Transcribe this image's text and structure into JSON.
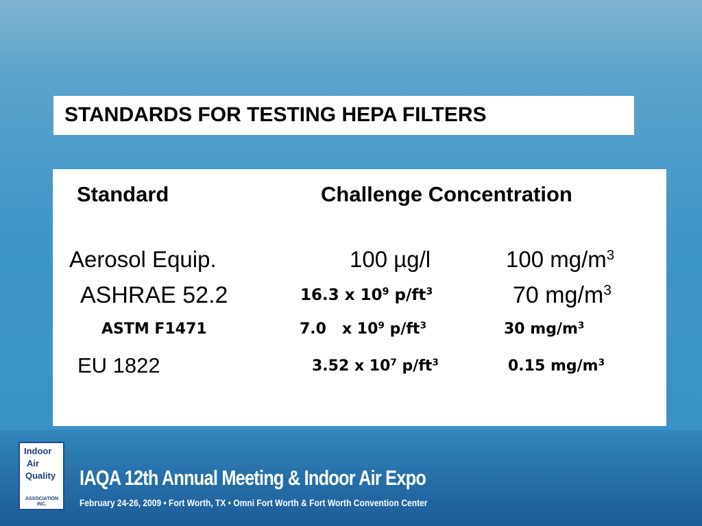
{
  "title": "STANDARDS FOR TESTING HEPA FILTERS",
  "table": {
    "header": [
      "Standard",
      "Challenge Concentration"
    ],
    "rows": [
      [
        [
          {
            "text": "Aerosol Equip."
          }
        ],
        [
          {
            "text": "100 µg/l"
          }
        ],
        [
          {
            "text": "100 mg/m"
          },
          {
            "text": "3",
            "superscript": true
          }
        ]
      ],
      [
        [
          {
            "text": "ASHRAE 52.2"
          }
        ],
        [
          {
            "text": "16.3 x 10"
          },
          {
            "text": "9",
            "superscript": true
          },
          {
            "text": " p/ft"
          },
          {
            "text": "3",
            "superscript": true
          }
        ],
        [
          {
            "text": "70 mg/m"
          },
          {
            "text": "3",
            "superscript": true
          }
        ]
      ],
      [
        [
          {
            "text": "ASTM F1471"
          }
        ],
        [
          {
            "text": "7.0   x 10"
          },
          {
            "text": "9",
            "superscript": true
          },
          {
            "text": " p/ft"
          },
          {
            "text": "3",
            "superscript": true
          }
        ],
        [
          {
            "text": "30 mg/m"
          },
          {
            "text": "3",
            "superscript": true
          }
        ]
      ],
      [
        [
          {
            "text": "EU 1822"
          }
        ],
        [
          {
            "text": "3.52 x 10"
          },
          {
            "text": "7",
            "superscript": true
          },
          {
            "text": " p/ft"
          },
          {
            "text": "3",
            "superscript": true
          }
        ],
        [
          {
            "text": "0.15 mg/m"
          },
          {
            "text": "3",
            "superscript": true
          }
        ]
      ]
    ]
  },
  "footer": {
    "logo": [
      "Indoor",
      "Air",
      "Quality",
      "ASSOCIATION INC."
    ],
    "title": "IAQA 12th Annual Meeting & Indoor Air Expo",
    "subtitle": "February 24-26, 2009 • Fort Worth, TX • Omni Fort Worth & Fort Worth Convention Center"
  }
}
